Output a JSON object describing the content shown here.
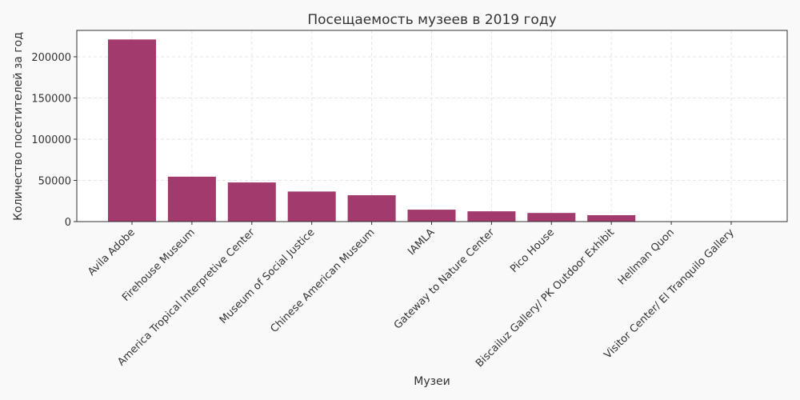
{
  "chart_data": {
    "type": "bar",
    "title": "Посещаемость музеев в 2019 году",
    "xlabel": "Музеи",
    "ylabel": "Количество посетителей за год",
    "categories": [
      "Avila Adobe",
      "Firehouse Museum",
      "America Tropical Interpretive Center",
      "Museum of Social Justice",
      "Chinese American Museum",
      "IAMLA",
      "Gateway to Nature Center",
      "Pico House",
      "Biscailuz Gallery/ PK Outdoor Exhibit",
      "Hellman Quon",
      "Visitor Center/ El Tranquilo Gallery"
    ],
    "values": [
      221000,
      54500,
      47500,
      36500,
      32000,
      14500,
      12500,
      10500,
      7800,
      0,
      0
    ],
    "ylim": [
      0,
      232000
    ],
    "yticks": [
      0,
      50000,
      100000,
      150000,
      200000
    ],
    "grid": true,
    "bar_color": "#a23a6e",
    "background_color": "#f9f9f9",
    "plot_background_color": "#ffffff"
  }
}
